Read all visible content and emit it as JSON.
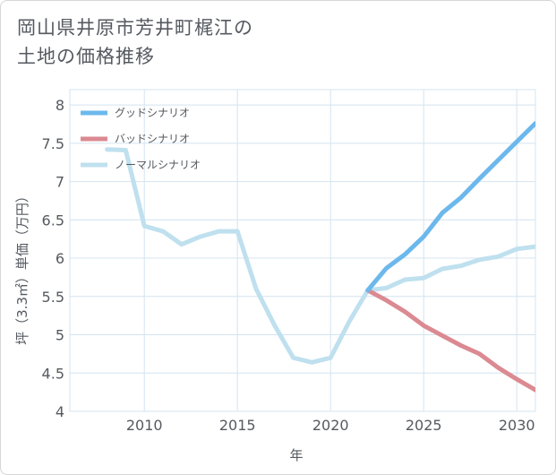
{
  "title": {
    "line1": "岡山県井原市芳井町梶江の",
    "line2": "土地の価格推移"
  },
  "colors": {
    "good": "#6cb8ec",
    "bad": "#db8a92",
    "normal": "#bfe0ee",
    "grid": "#d4e4f0",
    "text": "#555a60"
  },
  "chart_data": {
    "type": "line",
    "title": "岡山県井原市芳井町梶江の土地の価格推移",
    "xlabel": "年",
    "ylabel": "坪（3.3㎡）単価（万円）",
    "xlim": [
      2006,
      2031
    ],
    "ylim": [
      4,
      8.2
    ],
    "xticks": [
      2010,
      2015,
      2020,
      2025,
      2030
    ],
    "yticks": [
      4,
      4.5,
      5,
      5.5,
      6,
      6.5,
      7,
      7.5,
      8
    ],
    "grid": true,
    "legend_position": "top-left",
    "series": [
      {
        "name": "グッドシナリオ",
        "color_key": "good",
        "x": [
          2022,
          2023,
          2024,
          2025,
          2026,
          2027,
          2028,
          2029,
          2030,
          2031
        ],
        "y": [
          5.58,
          5.87,
          6.05,
          6.28,
          6.59,
          6.79,
          7.04,
          7.28,
          7.52,
          7.76
        ]
      },
      {
        "name": "バッドシナリオ",
        "color_key": "bad",
        "x": [
          2022,
          2023,
          2024,
          2025,
          2026,
          2027,
          2028,
          2029,
          2030,
          2031
        ],
        "y": [
          5.58,
          5.45,
          5.3,
          5.12,
          4.99,
          4.86,
          4.75,
          4.57,
          4.42,
          4.28
        ]
      },
      {
        "name": "ノーマルシナリオ",
        "color_key": "normal",
        "x": [
          2008,
          2009,
          2010,
          2011,
          2012,
          2013,
          2014,
          2015,
          2016,
          2017,
          2018,
          2019,
          2020,
          2021,
          2022,
          2023,
          2024,
          2025,
          2026,
          2027,
          2028,
          2029,
          2030,
          2031
        ],
        "y": [
          7.42,
          7.41,
          6.42,
          6.35,
          6.18,
          6.28,
          6.35,
          6.35,
          5.6,
          5.12,
          4.7,
          4.64,
          4.7,
          5.17,
          5.58,
          5.61,
          5.72,
          5.74,
          5.86,
          5.9,
          5.98,
          6.02,
          6.12,
          6.15
        ]
      }
    ]
  }
}
